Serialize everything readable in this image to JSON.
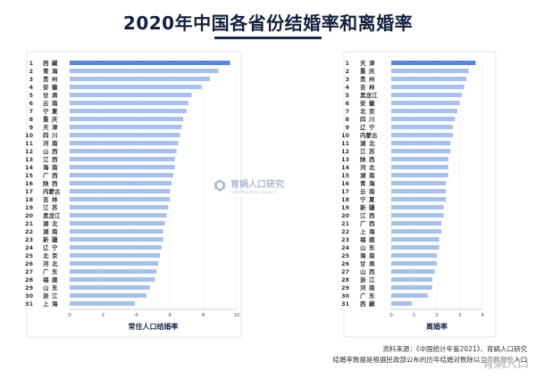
{
  "title": "2020年中国各省份结婚率和离婚率",
  "watermark": {
    "text": "育娲人口研究",
    "sub": "YuWa Population Research"
  },
  "source": {
    "line1": "资料来源：《中国统计年鉴2021》、育娲人口研究",
    "line2": "结婚率数据是根据民政部公布的历年结婚对数除以当年的常住人口"
  },
  "corner_mark": "育娲人口",
  "chart_data": [
    {
      "type": "bar",
      "orientation": "horizontal",
      "xlabel": "常住人口结婚率",
      "xlim": [
        0,
        10
      ],
      "xticks": [
        0,
        2,
        4,
        6,
        8,
        10
      ],
      "ranks": [
        "1",
        "2",
        "3",
        "4",
        "5",
        "6",
        "7",
        "8",
        "9",
        "10",
        "11",
        "12",
        "13",
        "14",
        "15",
        "16",
        "17",
        "18",
        "19",
        "20",
        "21",
        "22",
        "23",
        "24",
        "25",
        "26",
        "27",
        "28",
        "29",
        "30",
        "31"
      ],
      "categories": [
        "西藏",
        "青海",
        "贵州",
        "安徽",
        "甘肃",
        "云南",
        "宁夏",
        "重庆",
        "天津",
        "四川",
        "河南",
        "山西",
        "江西",
        "海南",
        "广西",
        "陕西",
        "内蒙古",
        "吉林",
        "江苏",
        "黑龙江",
        "湖北",
        "湖南",
        "新疆",
        "辽宁",
        "北京",
        "河北",
        "广东",
        "福建",
        "山东",
        "浙江",
        "上海"
      ],
      "values": [
        9.6,
        8.9,
        8.4,
        7.9,
        7.3,
        7.1,
        7.0,
        6.8,
        6.7,
        6.6,
        6.5,
        6.4,
        6.3,
        6.3,
        6.2,
        6.1,
        6.0,
        6.0,
        5.9,
        5.8,
        5.7,
        5.6,
        5.6,
        5.5,
        5.4,
        5.3,
        5.2,
        5.1,
        4.8,
        4.6,
        3.9
      ]
    },
    {
      "type": "bar",
      "orientation": "horizontal",
      "xlabel": "离婚率",
      "xlim": [
        0,
        4
      ],
      "xticks": [
        0,
        1,
        2,
        3,
        4
      ],
      "ranks": [
        "1",
        "2",
        "3",
        "4",
        "5",
        "6",
        "7",
        "8",
        "9",
        "10",
        "11",
        "12",
        "13",
        "14",
        "15",
        "16",
        "17",
        "18",
        "19",
        "20",
        "21",
        "22",
        "23",
        "24",
        "25",
        "26",
        "27",
        "28",
        "29",
        "30",
        "31"
      ],
      "categories": [
        "天津",
        "重庆",
        "贵州",
        "吉林",
        "黑龙江",
        "安徽",
        "北京",
        "四川",
        "辽宁",
        "内蒙古",
        "湖北",
        "江苏",
        "陕西",
        "河北",
        "湖南",
        "青海",
        "云南",
        "宁夏",
        "新疆",
        "江西",
        "广西",
        "上海",
        "福建",
        "山东",
        "海南",
        "甘肃",
        "山西",
        "浙江",
        "河南",
        "广东",
        "西藏"
      ],
      "values": [
        3.7,
        3.4,
        3.3,
        3.2,
        3.1,
        3.0,
        2.9,
        2.8,
        2.7,
        2.7,
        2.6,
        2.6,
        2.5,
        2.5,
        2.5,
        2.4,
        2.4,
        2.4,
        2.3,
        2.3,
        2.2,
        2.2,
        2.1,
        2.1,
        2.0,
        2.0,
        1.9,
        1.8,
        1.8,
        1.6,
        0.9
      ]
    }
  ]
}
